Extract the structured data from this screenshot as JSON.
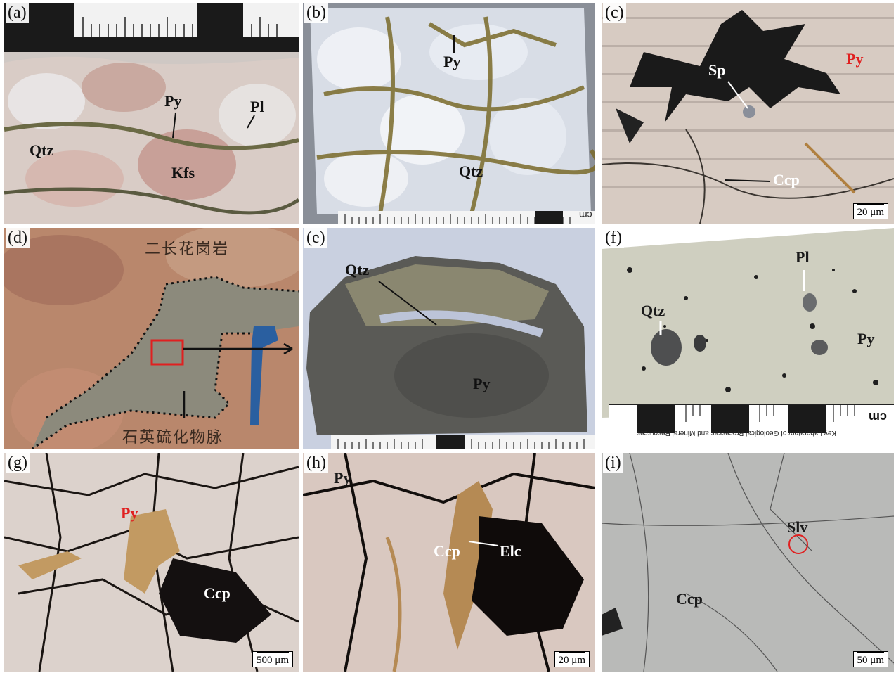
{
  "panels": {
    "a": {
      "letter": "(a)",
      "labels": {
        "qtz": "Qtz",
        "py": "Py",
        "pl": "Pl",
        "kfs": "Kfs"
      }
    },
    "b": {
      "letter": "(b)",
      "labels": {
        "py": "Py",
        "qtz": "Qtz"
      },
      "ruler_unit": "cm"
    },
    "c": {
      "letter": "(c)",
      "labels": {
        "sp": "Sp",
        "py": "Py",
        "ccp": "Ccp"
      },
      "scale": "20 μm"
    },
    "d": {
      "letter": "(d)",
      "labels": {
        "top_cn": "二长花岗岩",
        "bottom_cn": "石英硫化物脉"
      }
    },
    "e": {
      "letter": "(e)",
      "labels": {
        "qtz": "Qtz",
        "py": "Py"
      }
    },
    "f": {
      "letter": "(f)",
      "labels": {
        "pl": "Pl",
        "qtz": "Qtz",
        "py": "Py"
      },
      "ruler_unit": "cm",
      "ruler_text": "Key Laboratory of Geological Processes and Mineral Resources"
    },
    "g": {
      "letter": "(g)",
      "labels": {
        "py": "Py",
        "ccp": "Ccp"
      },
      "scale": "500 μm"
    },
    "h": {
      "letter": "(h)",
      "labels": {
        "py": "Py",
        "ccp": "Ccp",
        "elc": "Elc"
      },
      "scale": "20 μm"
    },
    "i": {
      "letter": "(i)",
      "labels": {
        "slv": "Slv",
        "ccp": "Ccp"
      },
      "scale": "50 μm"
    }
  },
  "colors": {
    "label_red": "#e02020",
    "marker_red": "#e02020",
    "pyrite_pink": "#d8c8c0",
    "chalcopyrite_gold": "#c8a060",
    "ccp_grey": "#b9bab8"
  }
}
